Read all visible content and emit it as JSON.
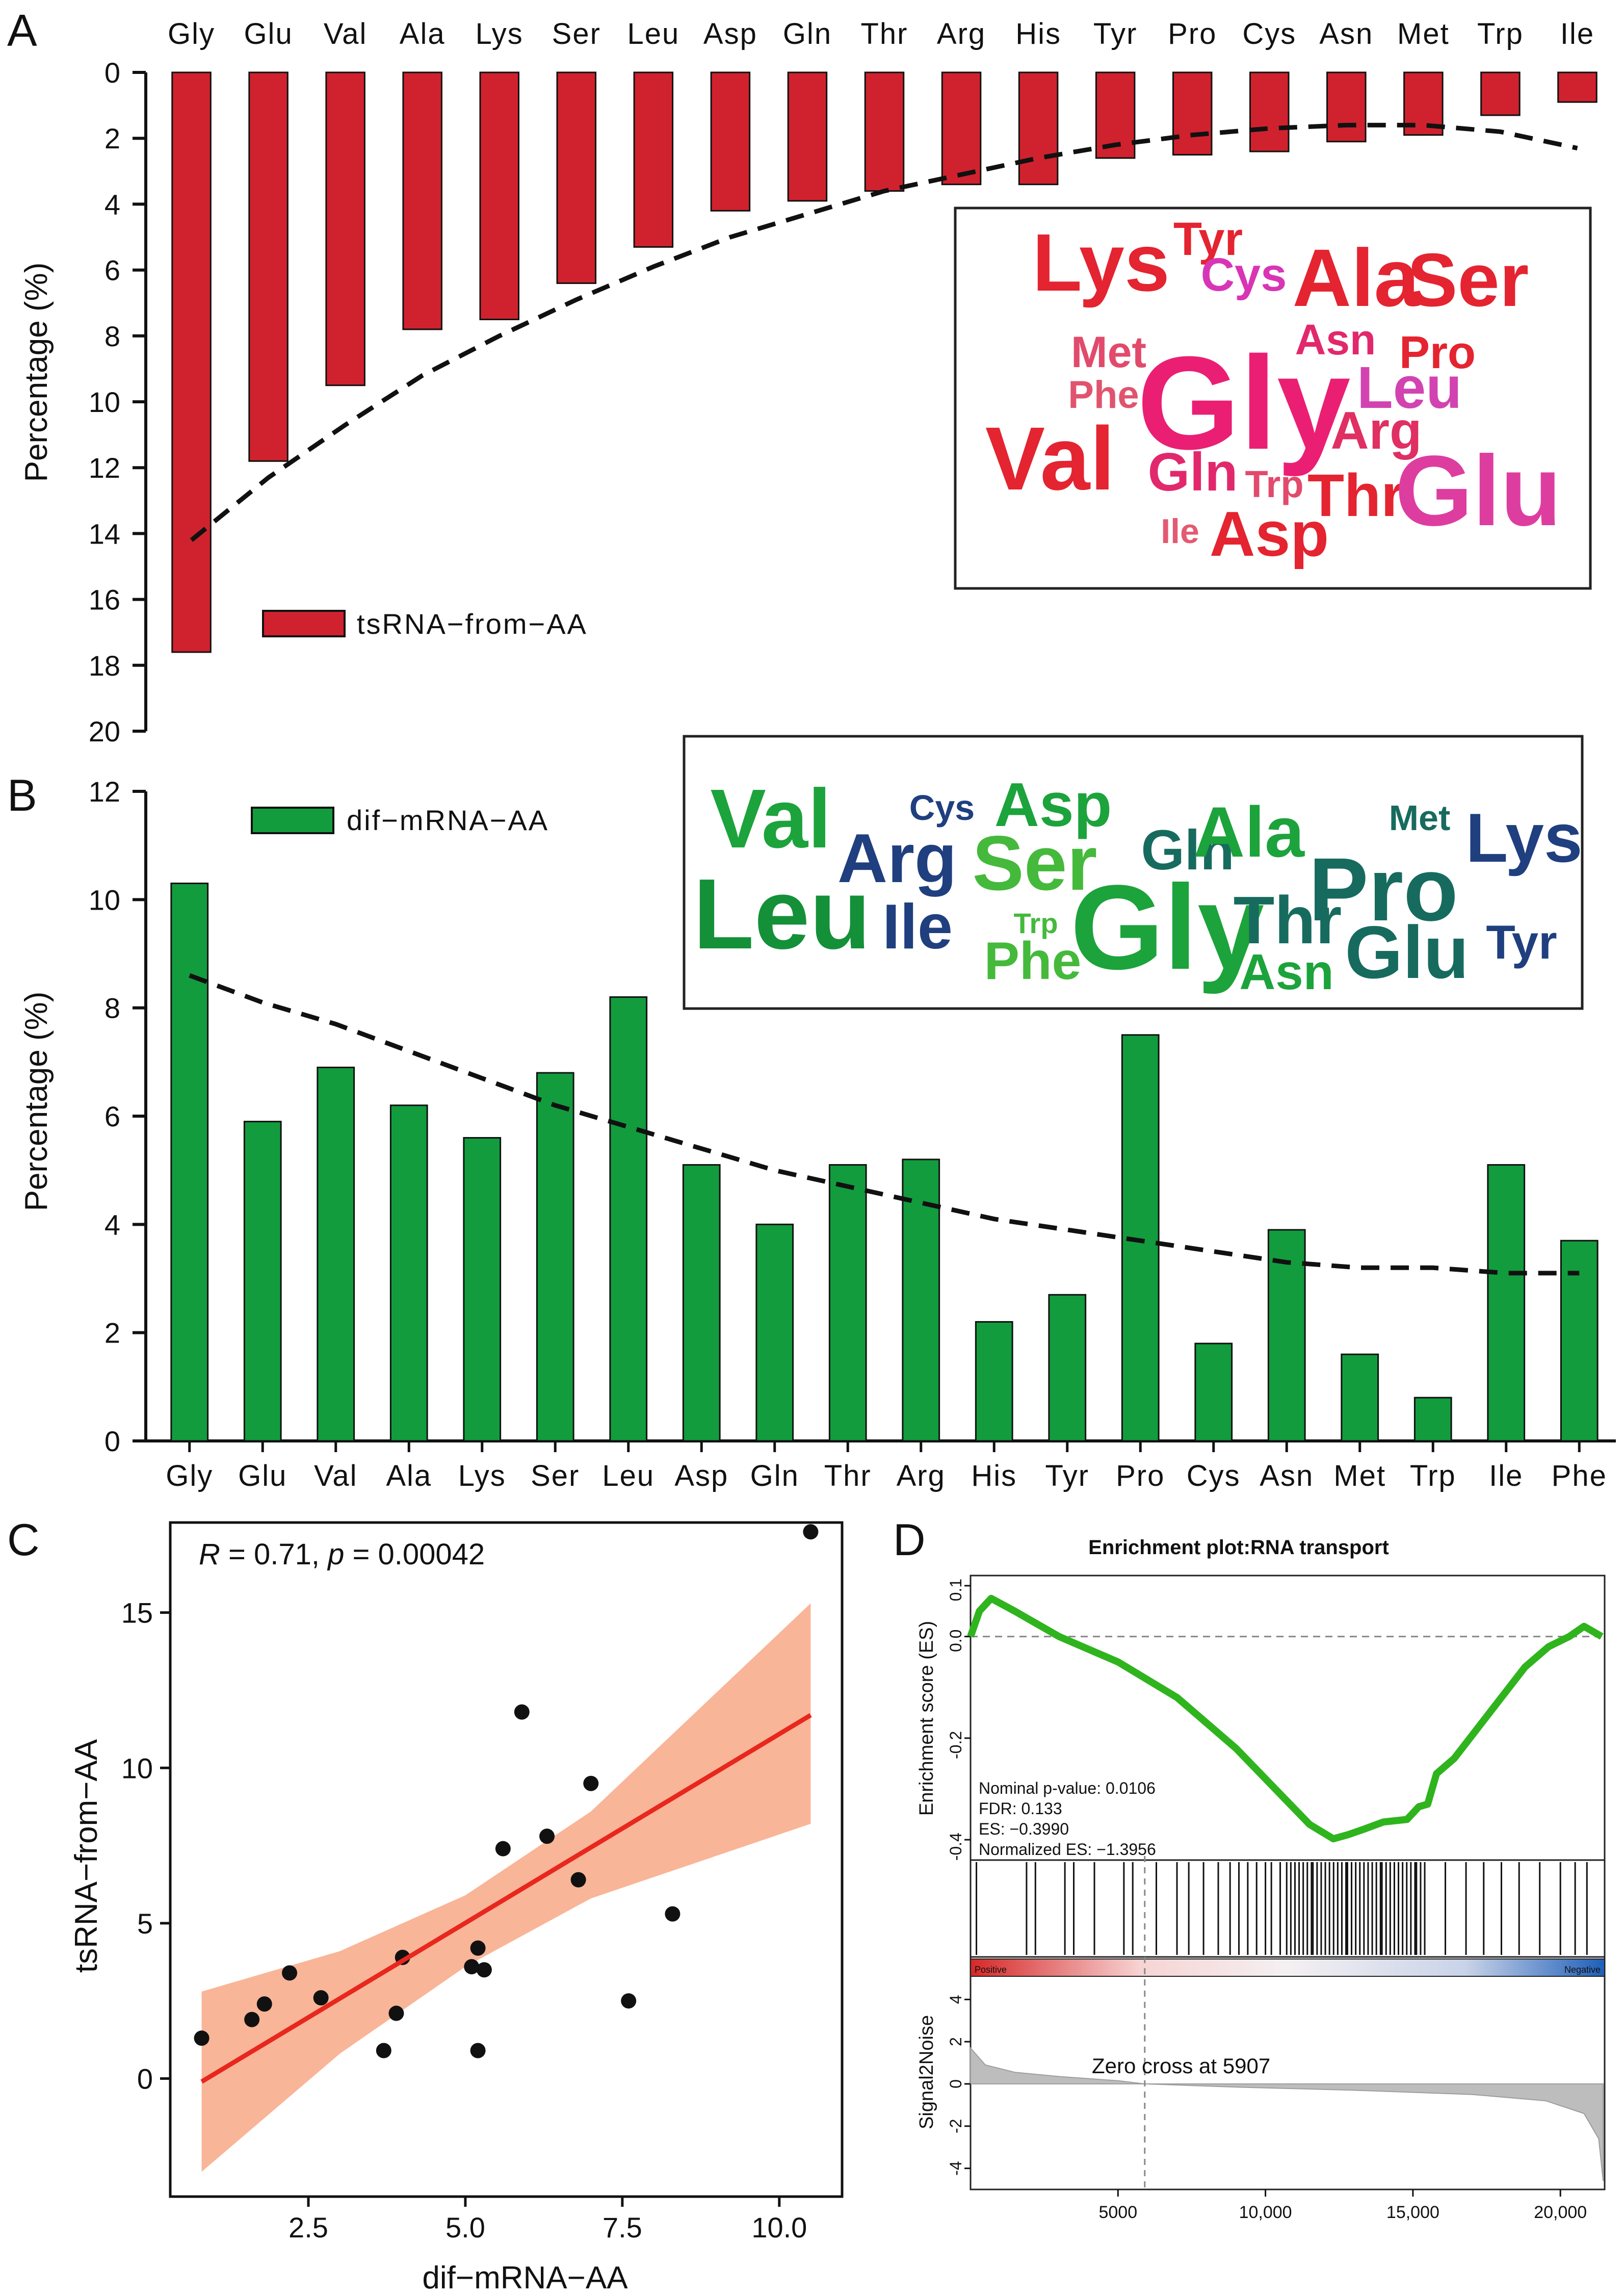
{
  "panels": {
    "A": "A",
    "B": "B",
    "C": "C",
    "D": "D"
  },
  "chart_data": [
    {
      "id": "A",
      "type": "bar",
      "orientation": "downward",
      "categories": [
        "Gly",
        "Glu",
        "Val",
        "Ala",
        "Lys",
        "Ser",
        "Leu",
        "Asp",
        "Gln",
        "Thr",
        "Arg",
        "His",
        "Tyr",
        "Pro",
        "Cys",
        "Asn",
        "Met",
        "Trp",
        "Ile"
      ],
      "series": [
        {
          "name": "tsRNA−from−AA",
          "values": [
            17.6,
            11.8,
            9.5,
            7.8,
            7.5,
            6.4,
            5.3,
            4.2,
            3.9,
            3.6,
            3.4,
            3.4,
            2.6,
            2.5,
            2.4,
            2.1,
            1.9,
            1.3,
            0.9
          ]
        }
      ],
      "trend": [
        14.2,
        12.3,
        10.7,
        9.2,
        8.0,
        6.9,
        5.9,
        5.0,
        4.3,
        3.6,
        3.1,
        2.6,
        2.2,
        1.9,
        1.7,
        1.6,
        1.6,
        1.8,
        2.3
      ],
      "xlabel": "",
      "ylabel": "Percentage (%)",
      "ylim": [
        0,
        20
      ],
      "yticks": [
        0,
        2,
        4,
        6,
        8,
        10,
        12,
        14,
        16,
        18,
        20
      ],
      "legend": "tsRNA−from−AA",
      "color": "#d0222e"
    },
    {
      "id": "B",
      "type": "bar",
      "categories": [
        "Gly",
        "Glu",
        "Val",
        "Ala",
        "Lys",
        "Ser",
        "Leu",
        "Asp",
        "Gln",
        "Thr",
        "Arg",
        "His",
        "Tyr",
        "Pro",
        "Cys",
        "Asn",
        "Met",
        "Trp",
        "Ile",
        "Phe"
      ],
      "series": [
        {
          "name": "dif−mRNA−AA",
          "values": [
            10.3,
            5.9,
            6.9,
            6.2,
            5.6,
            6.8,
            8.2,
            5.1,
            4.0,
            5.1,
            5.2,
            2.2,
            2.7,
            7.5,
            1.8,
            3.9,
            1.6,
            0.8,
            5.1,
            3.7
          ]
        }
      ],
      "trend": [
        8.6,
        8.1,
        7.7,
        7.2,
        6.7,
        6.2,
        5.8,
        5.4,
        5.0,
        4.7,
        4.4,
        4.1,
        3.9,
        3.7,
        3.5,
        3.3,
        3.2,
        3.2,
        3.1,
        3.1
      ],
      "xlabel": "",
      "ylabel": "Percentage (%)",
      "ylim": [
        0,
        12
      ],
      "yticks": [
        0,
        2,
        4,
        6,
        8,
        10,
        12
      ],
      "legend": "dif−mRNA−AA",
      "color": "#129c3e"
    },
    {
      "id": "C",
      "type": "scatter",
      "annotation_r": "0.71",
      "annotation_p": "0.00042",
      "xlabel": "dif−mRNA−AA",
      "ylabel": "tsRNA−from−AA",
      "xlim": [
        0.3,
        11.0
      ],
      "ylim": [
        -3.8,
        17.9
      ],
      "xticks": [
        2.5,
        5.0,
        7.5,
        10.0
      ],
      "xtick_labels": [
        "2.5",
        "5.0",
        "7.5",
        "10.0"
      ],
      "yticks": [
        0,
        5,
        10,
        15
      ],
      "points": [
        {
          "x": 10.5,
          "y": 17.6
        },
        {
          "x": 5.9,
          "y": 11.8
        },
        {
          "x": 7.0,
          "y": 9.5
        },
        {
          "x": 6.3,
          "y": 7.8
        },
        {
          "x": 5.6,
          "y": 7.4
        },
        {
          "x": 6.8,
          "y": 6.4
        },
        {
          "x": 8.3,
          "y": 5.3
        },
        {
          "x": 5.2,
          "y": 4.2
        },
        {
          "x": 4.0,
          "y": 3.9
        },
        {
          "x": 5.1,
          "y": 3.6
        },
        {
          "x": 5.3,
          "y": 3.5
        },
        {
          "x": 2.2,
          "y": 3.4
        },
        {
          "x": 2.7,
          "y": 2.6
        },
        {
          "x": 1.8,
          "y": 2.4
        },
        {
          "x": 1.6,
          "y": 1.9
        },
        {
          "x": 7.6,
          "y": 2.5
        },
        {
          "x": 3.9,
          "y": 2.1
        },
        {
          "x": 0.8,
          "y": 1.3
        },
        {
          "x": 3.7,
          "y": 0.9
        },
        {
          "x": 5.2,
          "y": 0.9
        }
      ],
      "fit": {
        "x": [
          0.8,
          10.5
        ],
        "y": [
          -0.1,
          11.7
        ]
      },
      "ci": {
        "x": [
          0.8,
          3.0,
          5.0,
          7.0,
          10.5
        ],
        "lower": [
          -3.0,
          0.8,
          3.6,
          5.8,
          8.2
        ],
        "upper": [
          2.8,
          4.1,
          5.9,
          8.6,
          15.3
        ]
      },
      "colors": {
        "line": "#e8271e",
        "band": "#f8ad8c",
        "point": "#111111"
      }
    },
    {
      "id": "D",
      "type": "line",
      "title": "Enrichment plot:RNA transport",
      "ylabel_top": "Enrichment score (ES)",
      "ylabel_bottom": "Signal2Noise",
      "es_yticks": [
        0.1,
        0.0,
        -0.2,
        -0.4
      ],
      "es_ytick_labels": [
        "0.1",
        "0.0",
        "-0.2",
        "-0.4"
      ],
      "snr_yticks": [
        4,
        2,
        0,
        -2,
        -4
      ],
      "xticks": [
        5000,
        10000,
        15000,
        20000
      ],
      "xtick_labels": [
        "5000",
        "10,000",
        "15,000",
        "20,000"
      ],
      "xlim": [
        0,
        21500
      ],
      "es_ylim": [
        -0.44,
        0.12
      ],
      "snr_ylim": [
        -5,
        5
      ],
      "es_curve": {
        "x": [
          0,
          300,
          700,
          1500,
          3000,
          5000,
          7000,
          9000,
          10500,
          11500,
          12300,
          12800,
          13300,
          14000,
          14800,
          15200,
          15500,
          15800,
          16400,
          17200,
          18000,
          18800,
          19600,
          20300,
          20800,
          21100,
          21400
        ],
        "y": [
          0.0,
          0.05,
          0.075,
          0.05,
          0.0,
          -0.05,
          -0.12,
          -0.22,
          -0.31,
          -0.37,
          -0.398,
          -0.39,
          -0.38,
          -0.365,
          -0.36,
          -0.335,
          -0.33,
          -0.27,
          -0.24,
          -0.18,
          -0.12,
          -0.06,
          -0.02,
          0.0,
          0.02,
          0.01,
          0.0
        ]
      },
      "nominal_p": "Nominal p-value: 0.0106",
      "fdr": "FDR: 0.133",
      "es": "ES: −0.3990",
      "nes": "Normalized ES: −1.3956",
      "zero_cross": "Zero cross at 5907",
      "zero_cross_x": 5907,
      "positive_label": "Positive",
      "negative_label": "Negative",
      "colors": {
        "curve": "#2fb41e",
        "positive": "#d62828",
        "negative": "#1f5fb8"
      }
    }
  ],
  "wordcloud_a": [
    {
      "text": "Gly",
      "size": 260,
      "color": "#ea1f73"
    },
    {
      "text": "Lys",
      "size": 160,
      "color": "#e42430"
    },
    {
      "text": "Tyr",
      "size": 92,
      "color": "#e42430"
    },
    {
      "text": "Cys",
      "size": 92,
      "color": "#d835b6"
    },
    {
      "text": "Ala",
      "size": 160,
      "color": "#e42430"
    },
    {
      "text": "Ser",
      "size": 148,
      "color": "#e42430"
    },
    {
      "text": "Met",
      "size": 86,
      "color": "#e24a6c"
    },
    {
      "text": "Asn",
      "size": 84,
      "color": "#e2286c"
    },
    {
      "text": "Pro",
      "size": 90,
      "color": "#e42430"
    },
    {
      "text": "Phe",
      "size": 76,
      "color": "#e0546e"
    },
    {
      "text": "Leu",
      "size": 116,
      "color": "#d243b1"
    },
    {
      "text": "Arg",
      "size": 104,
      "color": "#e02f62"
    },
    {
      "text": "Val",
      "size": 176,
      "color": "#e42430"
    },
    {
      "text": "Gln",
      "size": 106,
      "color": "#e2286c"
    },
    {
      "text": "Trp",
      "size": 74,
      "color": "#e24a6c"
    },
    {
      "text": "Thr",
      "size": 118,
      "color": "#e42430"
    },
    {
      "text": "Glu",
      "size": 196,
      "color": "#de3da0"
    },
    {
      "text": "Ile",
      "size": 68,
      "color": "#e35a72"
    },
    {
      "text": "Asp",
      "size": 124,
      "color": "#e42430"
    }
  ],
  "wordcloud_b": [
    {
      "text": "Val",
      "size": 164,
      "color": "#1ca33c"
    },
    {
      "text": "Arg",
      "size": 136,
      "color": "#1f3f7f"
    },
    {
      "text": "Cys",
      "size": 70,
      "color": "#1f3f7f"
    },
    {
      "text": "Asp",
      "size": 122,
      "color": "#1ca33c"
    },
    {
      "text": "Ser",
      "size": 152,
      "color": "#45b93b"
    },
    {
      "text": "Gln",
      "size": 110,
      "color": "#176b5e"
    },
    {
      "text": "Ala",
      "size": 140,
      "color": "#1ca33c"
    },
    {
      "text": "Met",
      "size": 70,
      "color": "#176b5e"
    },
    {
      "text": "Lys",
      "size": 136,
      "color": "#1f3f7f"
    },
    {
      "text": "Leu",
      "size": 196,
      "color": "#149039"
    },
    {
      "text": "Ile",
      "size": 124,
      "color": "#1f3f7f"
    },
    {
      "text": "Trp",
      "size": 56,
      "color": "#45b93b"
    },
    {
      "text": "Phe",
      "size": 104,
      "color": "#45b93b"
    },
    {
      "text": "Gly",
      "size": 236,
      "color": "#1ca33c"
    },
    {
      "text": "Pro",
      "size": 176,
      "color": "#176b5e"
    },
    {
      "text": "Thr",
      "size": 132,
      "color": "#176b5e"
    },
    {
      "text": "Asn",
      "size": 98,
      "color": "#1ca33c"
    },
    {
      "text": "Glu",
      "size": 146,
      "color": "#176b5e"
    },
    {
      "text": "Tyr",
      "size": 94,
      "color": "#1f3f7f"
    }
  ]
}
